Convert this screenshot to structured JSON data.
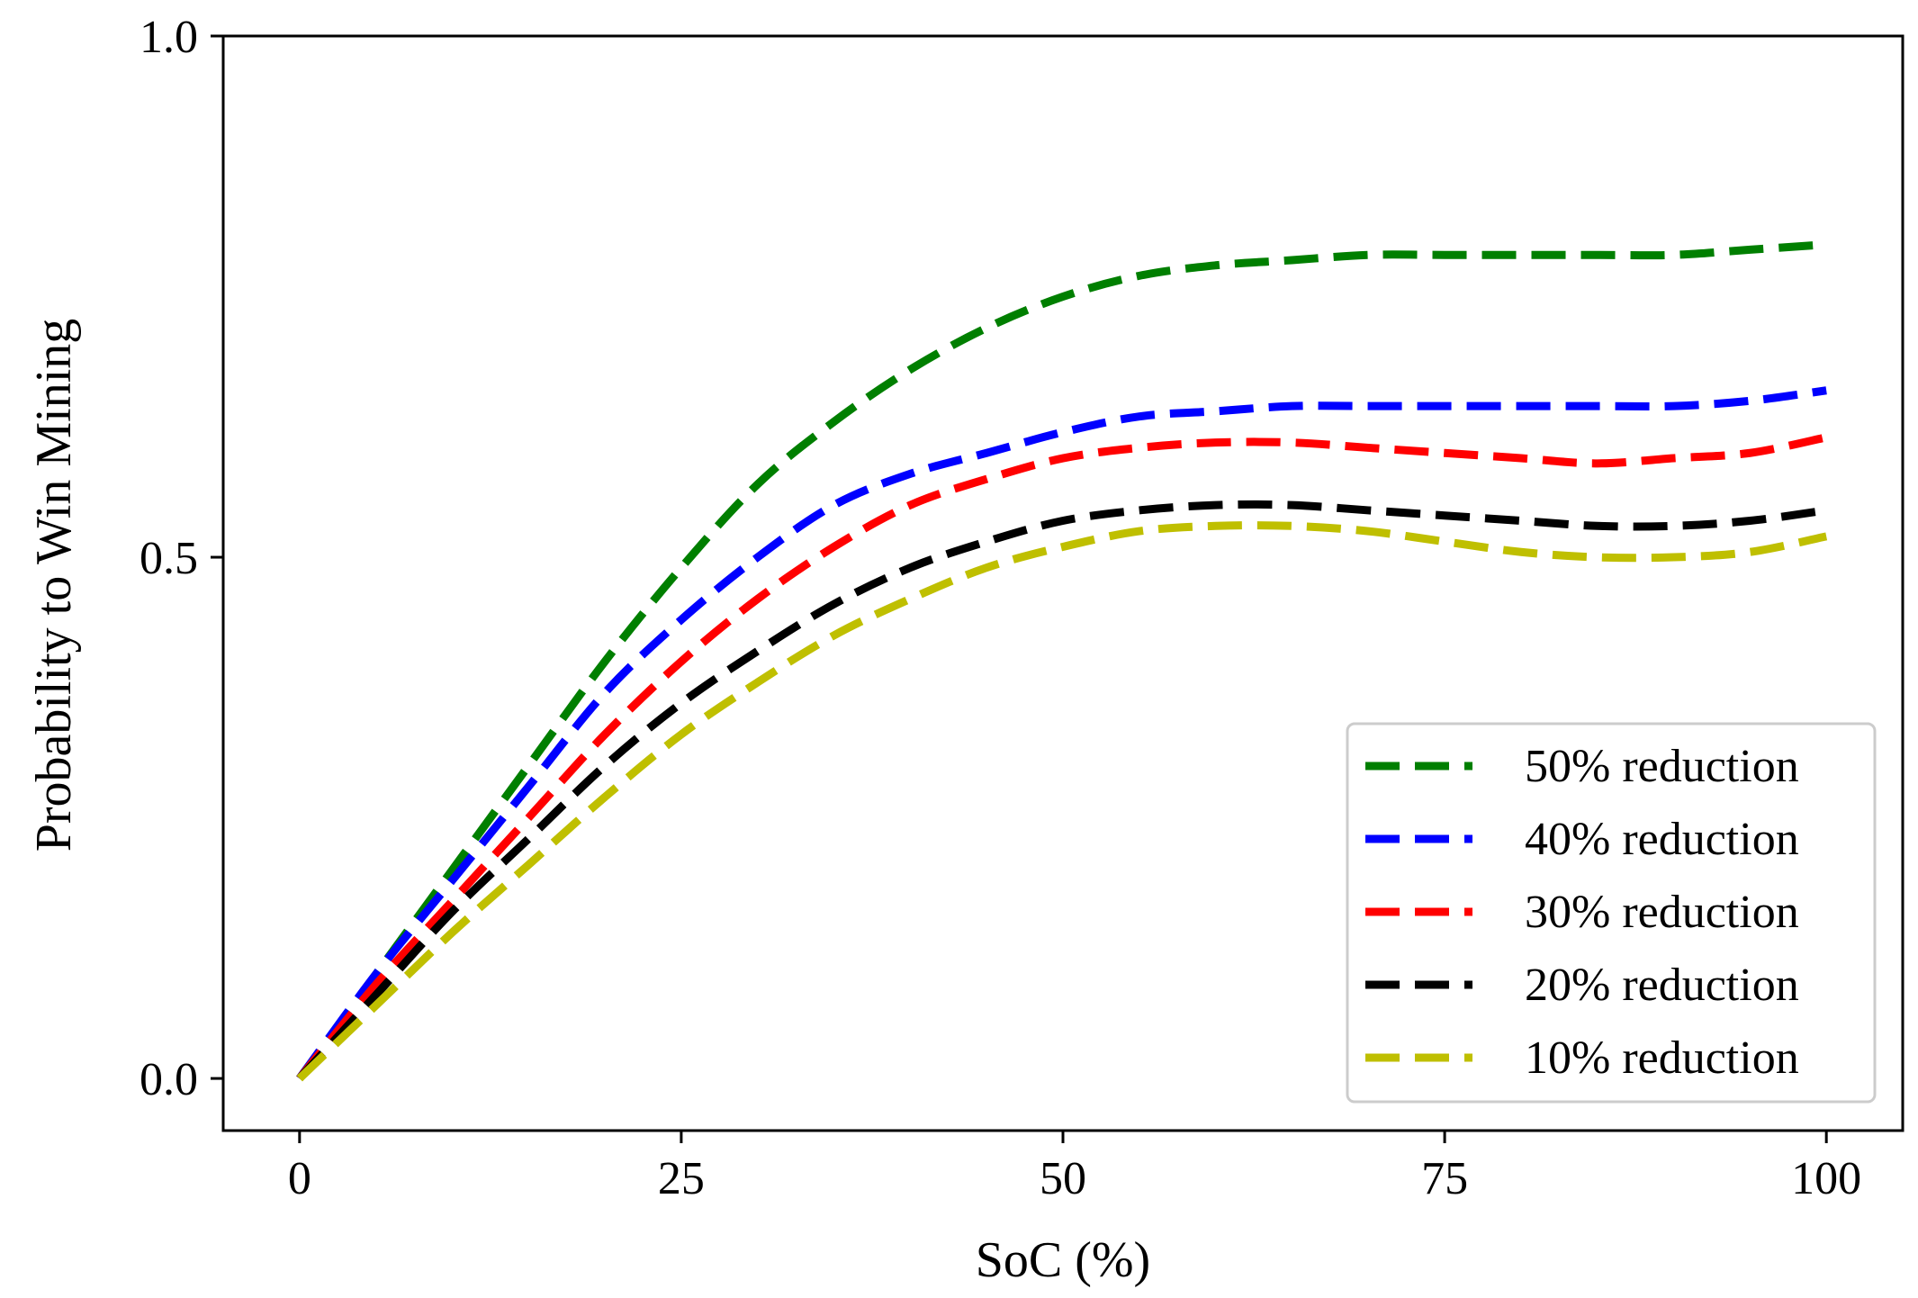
{
  "chart_data": {
    "type": "line",
    "title": "",
    "xlabel": "SoC (%)",
    "ylabel": "Probability to Win Mining",
    "xlim": [
      -5,
      105
    ],
    "ylim": [
      -0.05,
      1.0
    ],
    "xticks": [
      0,
      25,
      50,
      75,
      100
    ],
    "xtick_labels": [
      "0",
      "25",
      "50",
      "75",
      "100"
    ],
    "yticks": [
      0.0,
      0.5,
      1.0
    ],
    "ytick_labels": [
      "0.0",
      "0.5",
      "1.0"
    ],
    "grid": false,
    "legend_position": "lower-right",
    "x": [
      0,
      5,
      10,
      15,
      20,
      25,
      30,
      35,
      40,
      45,
      50,
      55,
      60,
      65,
      70,
      75,
      80,
      85,
      90,
      95,
      100
    ],
    "series": [
      {
        "name": "50% reduction",
        "color": "#007f00",
        "style": "dashed",
        "values": [
          0.0,
          0.1,
          0.2,
          0.3,
          0.4,
          0.49,
          0.57,
          0.63,
          0.68,
          0.72,
          0.75,
          0.77,
          0.78,
          0.785,
          0.79,
          0.79,
          0.79,
          0.79,
          0.79,
          0.795,
          0.8
        ]
      },
      {
        "name": "40% reduction",
        "color": "#0000ff",
        "style": "dashed",
        "values": [
          0.0,
          0.1,
          0.19,
          0.28,
          0.37,
          0.44,
          0.5,
          0.55,
          0.58,
          0.6,
          0.62,
          0.635,
          0.64,
          0.645,
          0.645,
          0.645,
          0.645,
          0.645,
          0.645,
          0.65,
          0.66
        ]
      },
      {
        "name": "30% reduction",
        "color": "#ff0000",
        "style": "dashed",
        "values": [
          0.0,
          0.09,
          0.17,
          0.25,
          0.33,
          0.4,
          0.46,
          0.51,
          0.55,
          0.575,
          0.595,
          0.605,
          0.61,
          0.61,
          0.605,
          0.6,
          0.595,
          0.59,
          0.595,
          0.6,
          0.615
        ]
      },
      {
        "name": "20% reduction",
        "color": "#000000",
        "style": "dashed",
        "values": [
          0.0,
          0.08,
          0.16,
          0.23,
          0.3,
          0.36,
          0.41,
          0.455,
          0.49,
          0.515,
          0.535,
          0.545,
          0.55,
          0.55,
          0.545,
          0.54,
          0.535,
          0.53,
          0.53,
          0.535,
          0.545
        ]
      },
      {
        "name": "10% reduction",
        "color": "#bfbf00",
        "style": "dashed",
        "values": [
          0.0,
          0.07,
          0.14,
          0.205,
          0.27,
          0.33,
          0.38,
          0.425,
          0.46,
          0.49,
          0.51,
          0.525,
          0.53,
          0.53,
          0.525,
          0.515,
          0.505,
          0.5,
          0.5,
          0.505,
          0.52
        ]
      }
    ]
  }
}
